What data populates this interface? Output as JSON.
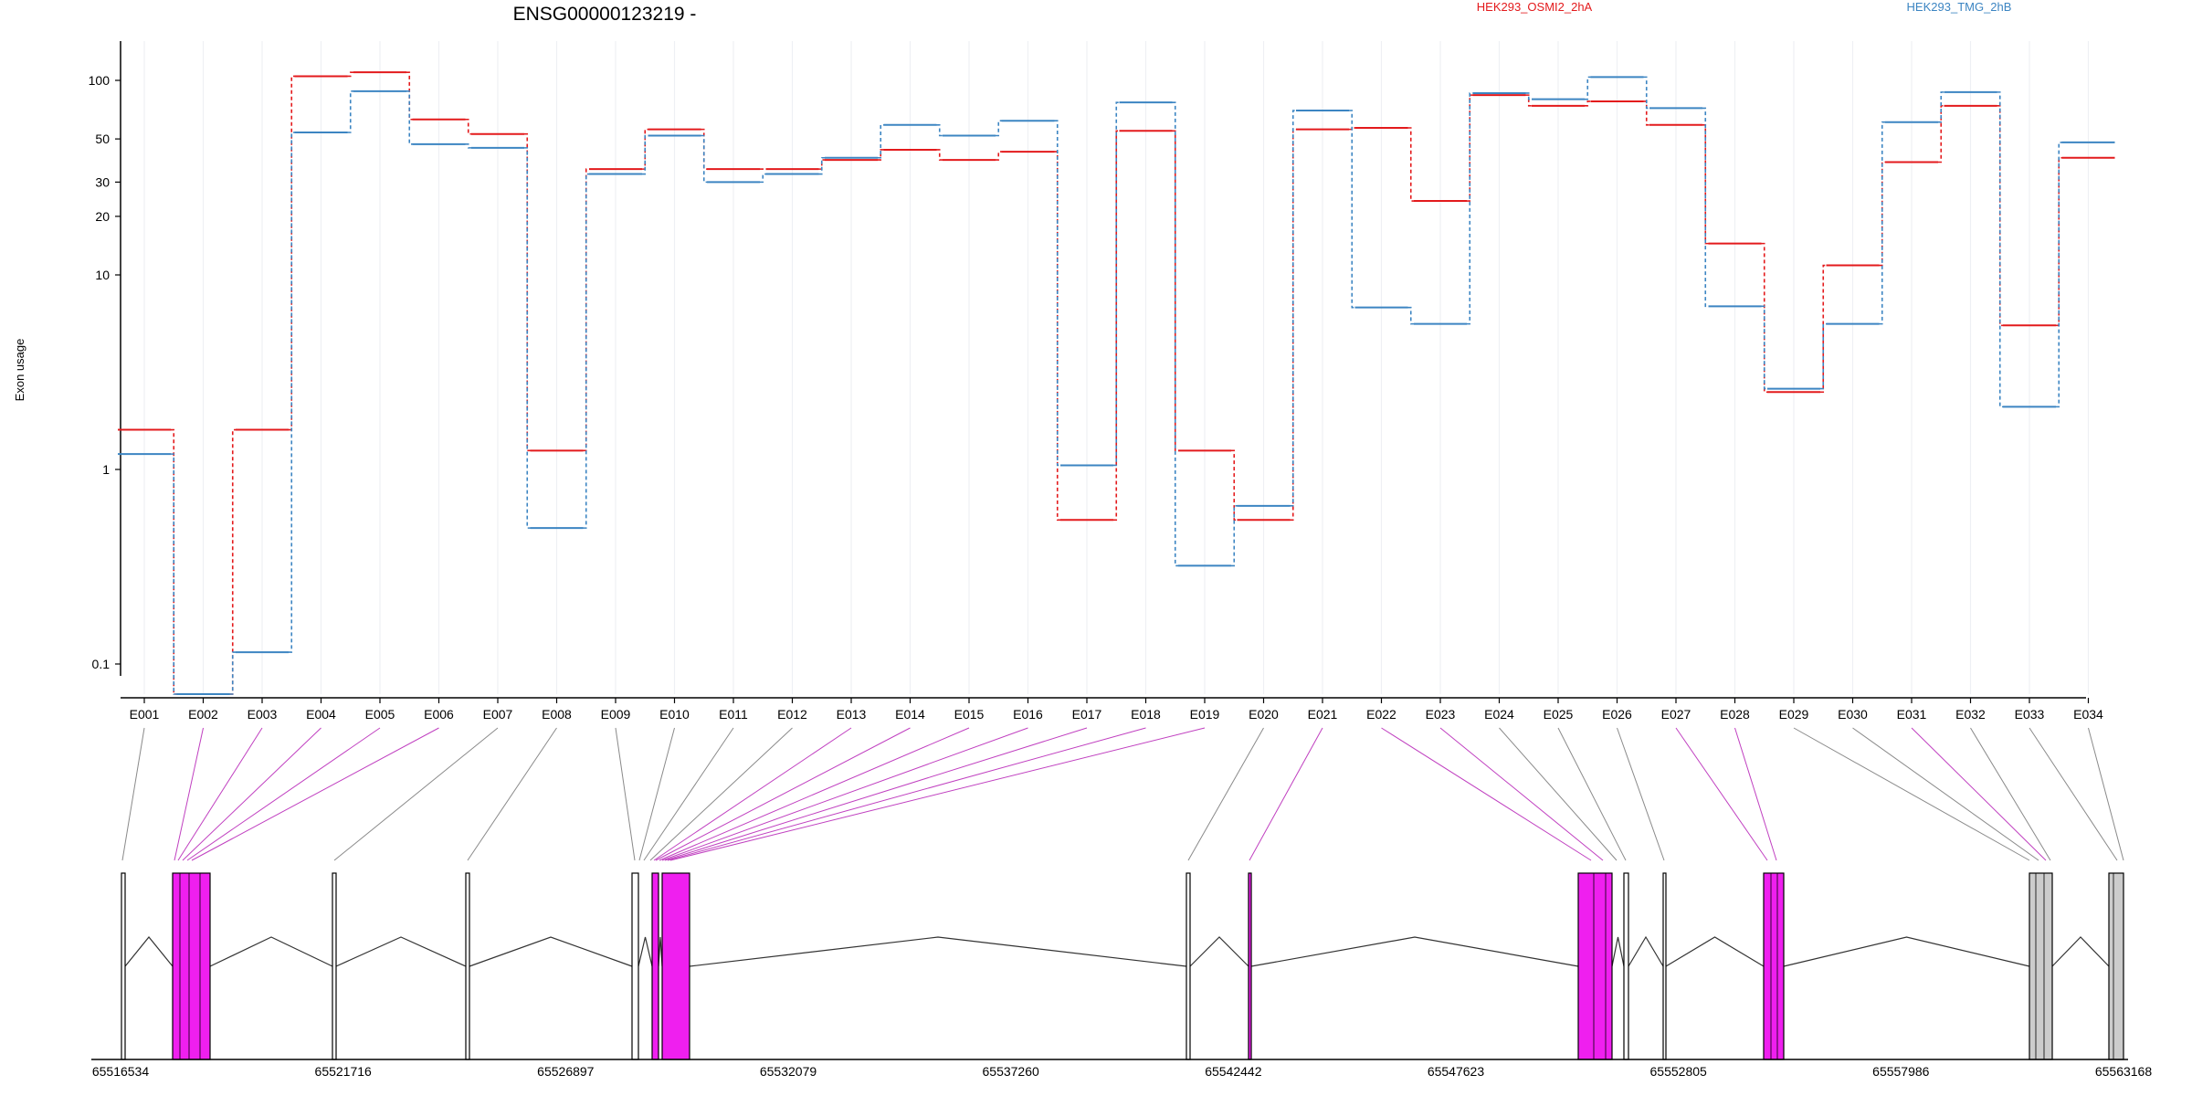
{
  "chart_data": {
    "type": "line",
    "title": "ENSG00000123219 -",
    "ylabel": "Exon usage",
    "yscale": "log",
    "ylim": [
      0.07,
      150
    ],
    "yticks": [
      "0.1",
      "1",
      "10",
      "20",
      "30",
      "50",
      "100"
    ],
    "yticks_values": [
      0.1,
      1,
      10,
      20,
      30,
      50,
      100
    ],
    "grid": "vertical light lines at each exon",
    "legend": "top",
    "categories": [
      "E001",
      "E002",
      "E003",
      "E004",
      "E005",
      "E006",
      "E007",
      "E008",
      "E009",
      "E010",
      "E011",
      "E012",
      "E013",
      "E014",
      "E015",
      "E016",
      "E017",
      "E018",
      "E019",
      "E020",
      "E021",
      "E022",
      "E023",
      "E024",
      "E025",
      "E026",
      "E027",
      "E028",
      "E029",
      "E030",
      "E031",
      "E032",
      "E033",
      "E034"
    ],
    "series": [
      {
        "name": "HEK293_OSMI2_2hA",
        "color": "#e31a1c",
        "values": [
          1.6,
          0.07,
          1.6,
          105,
          110,
          63,
          53,
          1.25,
          35,
          56,
          35,
          35,
          39,
          44,
          39,
          43,
          0.55,
          55,
          1.25,
          0.55,
          56,
          57,
          24,
          84,
          74,
          78,
          59,
          14.5,
          2.5,
          11.2,
          38,
          74,
          5.5,
          40
        ]
      },
      {
        "name": "HEK293_TMG_2hB",
        "color": "#3c85c2",
        "values": [
          1.2,
          0.07,
          0.115,
          54,
          88,
          47,
          45,
          0.5,
          33,
          52,
          30,
          33,
          40,
          59,
          52,
          62,
          1.05,
          77,
          0.32,
          0.65,
          70,
          6.8,
          5.6,
          86,
          80,
          104,
          72,
          6.9,
          2.6,
          5.6,
          61,
          87,
          2.1,
          48
        ]
      }
    ]
  },
  "gene_model": {
    "genomic_ticks": [
      "65516534",
      "65521716",
      "65526897",
      "65532079",
      "65537260",
      "65542442",
      "65547623",
      "65552805",
      "65557986",
      "65563168"
    ],
    "highlight_color": "#ef1fef",
    "exon_color_normal": "#ffffff",
    "exon_color_grey": "#cccccc"
  }
}
